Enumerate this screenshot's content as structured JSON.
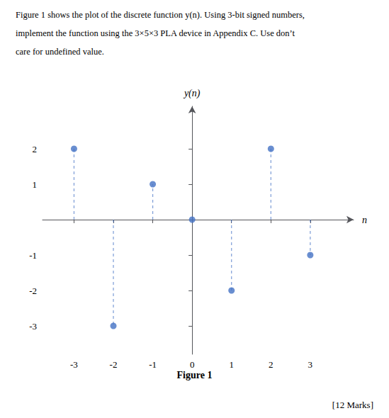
{
  "chart_data": {
    "type": "stem",
    "intro": [
      "Figure 1 shows the plot of the discrete function y(n). Using 3-bit signed numbers,",
      "implement the function using the 3×5×3 PLA device in Appendix C. Use don’t",
      "care for undefined value."
    ],
    "caption": "Figure 1",
    "marks": "[12 Marks]",
    "x_label": "n",
    "y_label": "y(n)",
    "x": [
      -3,
      -2,
      -1,
      0,
      1,
      2,
      3
    ],
    "values": [
      2,
      -3,
      1,
      0,
      -2,
      2,
      -1
    ],
    "color": "#4472C4",
    "marker": "circle",
    "line_style": "dashed",
    "xlim": [
      -3.8,
      4.1
    ],
    "ylim": [
      -3.8,
      3.2
    ],
    "xticks": [
      -3,
      -2,
      -1,
      0,
      1,
      2,
      3
    ],
    "yticks": [
      -3,
      -2,
      -1,
      1,
      2
    ],
    "grid": false,
    "legend": null
  }
}
